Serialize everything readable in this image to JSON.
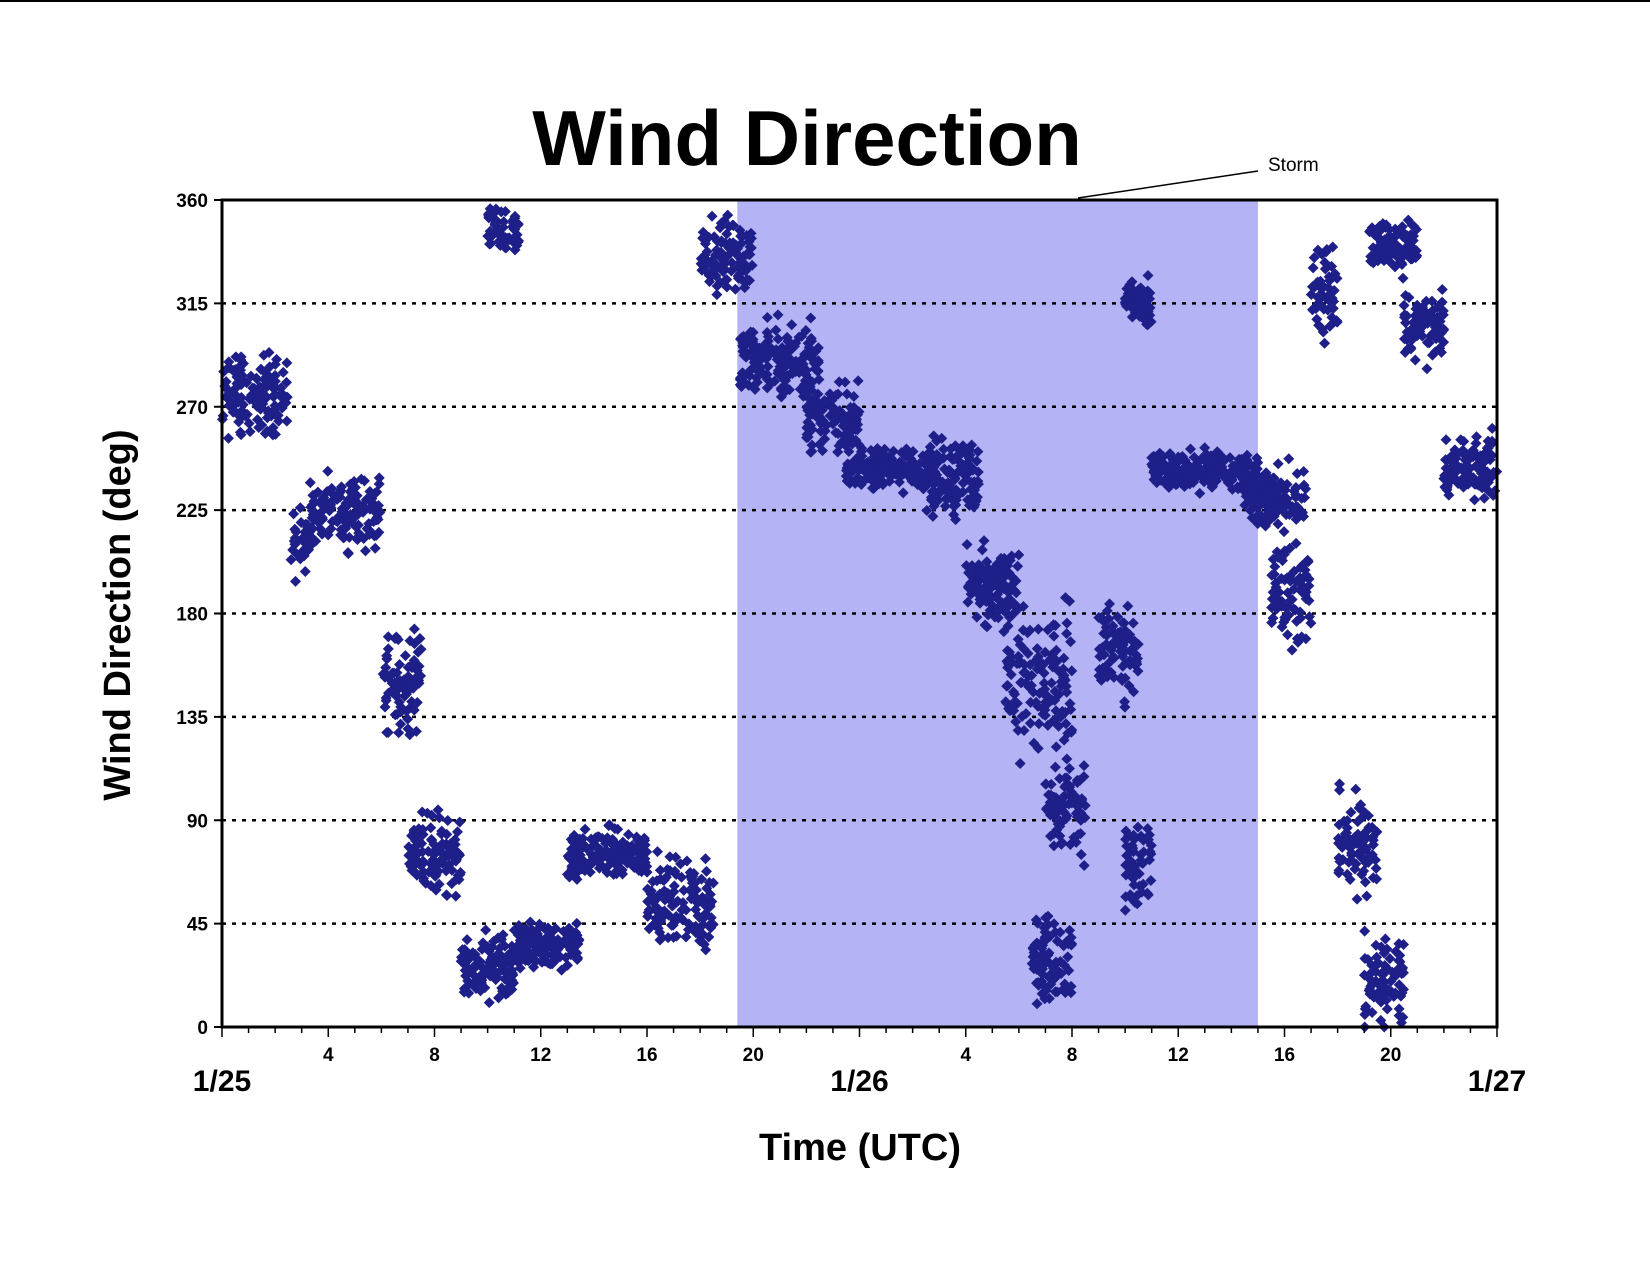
{
  "chart_data": {
    "type": "scatter",
    "title": "Wind Direction",
    "xlabel": "Time (UTC)",
    "ylabel": "Wind Direction (deg)",
    "ylim": [
      0,
      360
    ],
    "xlim": [
      0,
      48
    ],
    "x_unit": "hours after 1/25 00 UTC",
    "grid": "horizontal dotted",
    "legend": "none",
    "yticks": [
      "0",
      "45",
      "90",
      "135",
      "180",
      "225",
      "270",
      "315",
      "360"
    ],
    "xticks": [
      {
        "hour": 4,
        "label": "4"
      },
      {
        "hour": 8,
        "label": "8"
      },
      {
        "hour": 12,
        "label": "12"
      },
      {
        "hour": 16,
        "label": "16"
      },
      {
        "hour": 20,
        "label": "20"
      },
      {
        "hour": 28,
        "label": "4"
      },
      {
        "hour": 32,
        "label": "8"
      },
      {
        "hour": 36,
        "label": "12"
      },
      {
        "hour": 40,
        "label": "16"
      },
      {
        "hour": 44,
        "label": "20"
      }
    ],
    "date_labels": [
      {
        "hour": 0,
        "label": "1/25"
      },
      {
        "hour": 24,
        "label": "1/26"
      },
      {
        "hour": 48,
        "label": "1/27"
      }
    ],
    "highlight": {
      "label": "Storm",
      "x_start": 19.4,
      "x_end": 39.0,
      "color": "#b3b3f5"
    },
    "marker_color": "#1f1f8a",
    "series_segments": [
      {
        "x": [
          0.0,
          2.5
        ],
        "center": 275,
        "spread": 25
      },
      {
        "x": [
          2.6,
          3.3
        ],
        "center": 210,
        "spread": 20
      },
      {
        "x": [
          3.3,
          6.0
        ],
        "center": 225,
        "spread": 22
      },
      {
        "x": [
          6.0,
          7.5
        ],
        "center": 150,
        "spread": 30
      },
      {
        "x": [
          7.0,
          9.0
        ],
        "center": 75,
        "spread": 25
      },
      {
        "x": [
          9.0,
          11.0
        ],
        "center": 25,
        "spread": 20
      },
      {
        "x": [
          10.0,
          11.2
        ],
        "center": 345,
        "spread": 15
      },
      {
        "x": [
          11.0,
          13.5
        ],
        "center": 35,
        "spread": 15
      },
      {
        "x": [
          13.0,
          16.0
        ],
        "center": 75,
        "spread": 15
      },
      {
        "x": [
          16.0,
          18.5
        ],
        "center": 55,
        "spread": 30
      },
      {
        "x": [
          18.0,
          20.0
        ],
        "center": 335,
        "spread": 25
      },
      {
        "x": [
          19.5,
          22.5
        ],
        "center": 290,
        "spread": 25
      },
      {
        "x": [
          22.0,
          24.0
        ],
        "center": 265,
        "spread": 20
      },
      {
        "x": [
          23.5,
          27.0
        ],
        "center": 243,
        "spread": 12
      },
      {
        "x": [
          26.5,
          28.5
        ],
        "center": 240,
        "spread": 25
      },
      {
        "x": [
          28.0,
          30.0
        ],
        "center": 190,
        "spread": 25
      },
      {
        "x": [
          29.5,
          32.0
        ],
        "center": 150,
        "spread": 45
      },
      {
        "x": [
          30.5,
          32.0
        ],
        "center": 30,
        "spread": 25
      },
      {
        "x": [
          31.0,
          32.5
        ],
        "center": 95,
        "spread": 35
      },
      {
        "x": [
          33.0,
          34.5
        ],
        "center": 165,
        "spread": 30
      },
      {
        "x": [
          34.0,
          35.0
        ],
        "center": 70,
        "spread": 30
      },
      {
        "x": [
          34.0,
          35.0
        ],
        "center": 315,
        "spread": 15
      },
      {
        "x": [
          35.0,
          39.0
        ],
        "center": 242,
        "spread": 12
      },
      {
        "x": [
          38.5,
          40.8
        ],
        "center": 230,
        "spread": 20
      },
      {
        "x": [
          39.5,
          41.0
        ],
        "center": 190,
        "spread": 30
      },
      {
        "x": [
          41.0,
          42.0
        ],
        "center": 320,
        "spread": 30
      },
      {
        "x": [
          42.0,
          43.5
        ],
        "center": 80,
        "spread": 30
      },
      {
        "x": [
          43.0,
          44.5
        ],
        "center": 20,
        "spread": 25
      },
      {
        "x": [
          43.2,
          45.0
        ],
        "center": 340,
        "spread": 15
      },
      {
        "x": [
          44.5,
          46.0
        ],
        "center": 305,
        "spread": 20
      },
      {
        "x": [
          46.0,
          48.0
        ],
        "center": 243,
        "spread": 20
      }
    ]
  },
  "annotation": {
    "storm_label": "Storm"
  }
}
